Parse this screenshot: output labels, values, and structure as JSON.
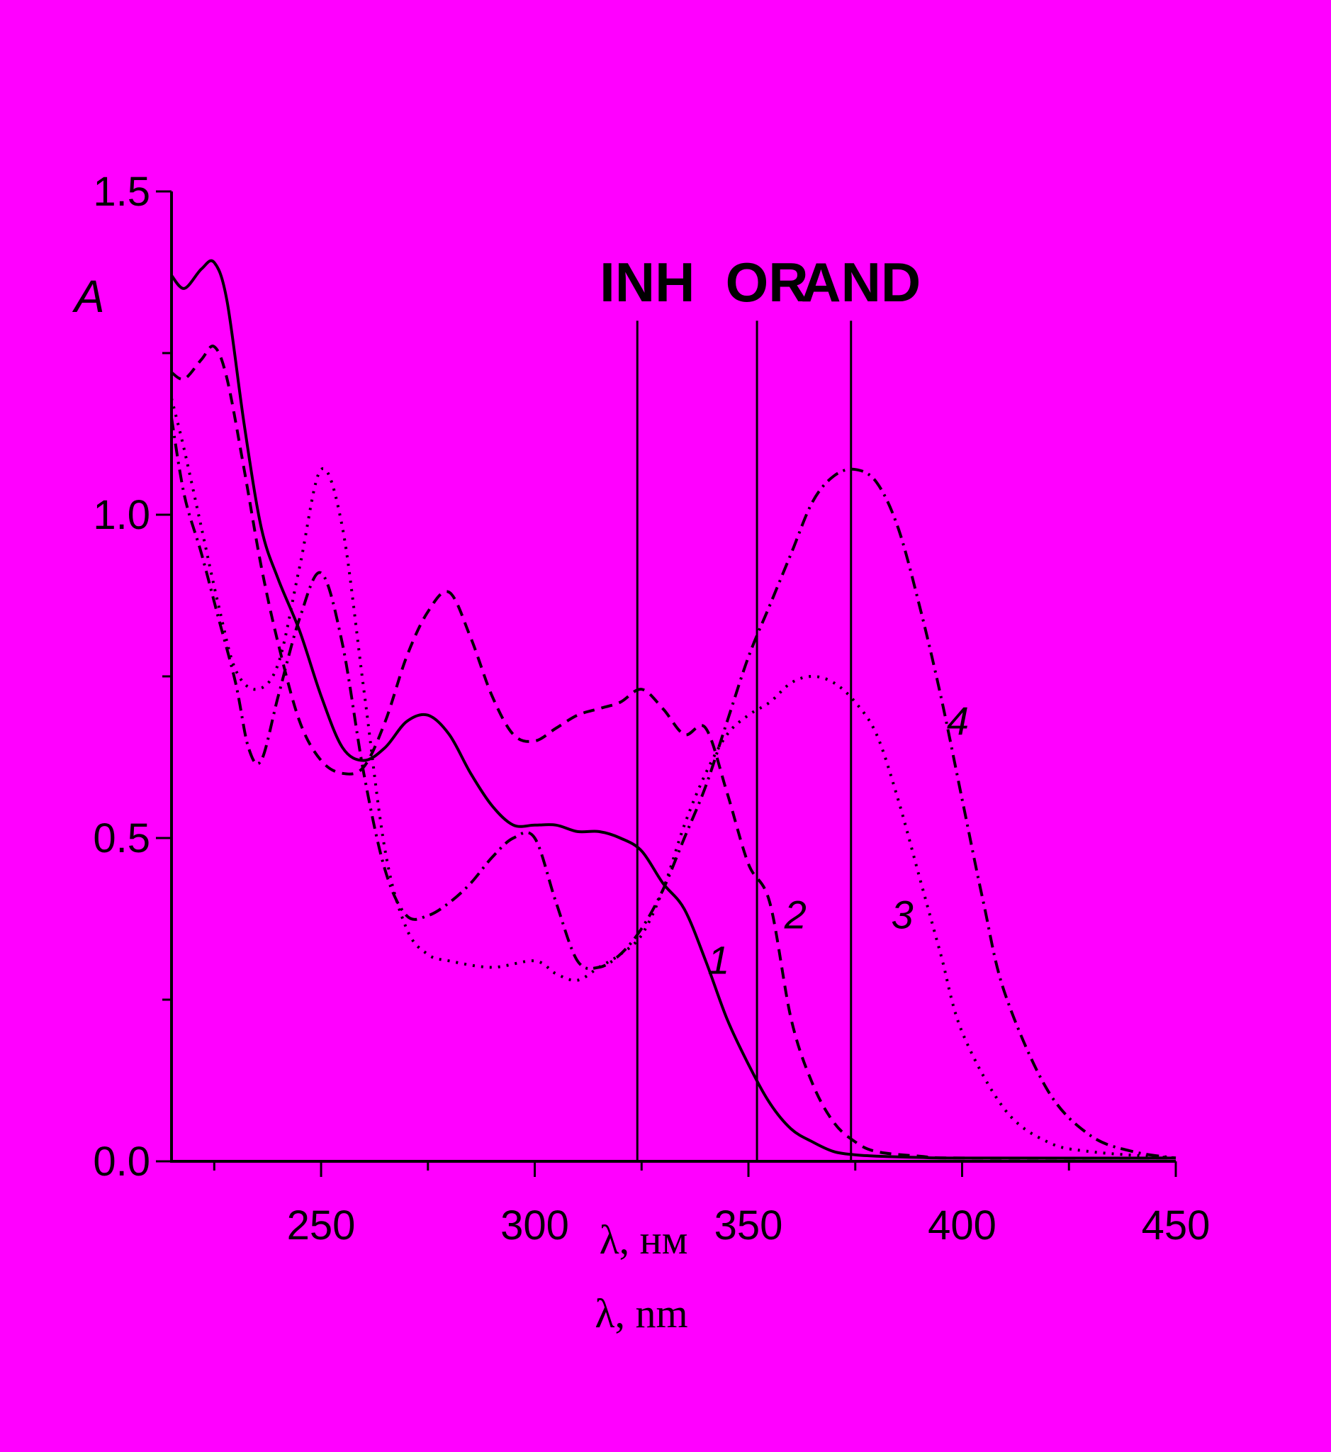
{
  "chart_data": {
    "type": "line",
    "title": "",
    "ylabel": "A",
    "xlabels": [
      "λ, нм",
      "λ, nm"
    ],
    "xlim": [
      215,
      450
    ],
    "ylim": [
      0,
      1.5
    ],
    "x_ticks": [
      250,
      300,
      350,
      400,
      450
    ],
    "y_ticks": [
      0.0,
      0.5,
      1.0,
      1.5
    ],
    "x_tick_labels": [
      "250",
      "300",
      "350",
      "400",
      "450"
    ],
    "y_tick_labels": [
      "0.0",
      "0.5",
      "1.0",
      "1.5"
    ],
    "grid": false,
    "markers": [
      {
        "label": "INH",
        "x": 324
      },
      {
        "label": "OR",
        "x": 352
      },
      {
        "label": "AND",
        "x": 374
      }
    ],
    "series": [
      {
        "name": "1",
        "style": "solid",
        "label_at": [
          343,
          0.29
        ],
        "x": [
          215,
          218,
          222,
          225,
          228,
          232,
          236,
          240,
          245,
          250,
          255,
          260,
          265,
          270,
          275,
          280,
          285,
          290,
          295,
          300,
          305,
          310,
          315,
          320,
          325,
          330,
          335,
          340,
          345,
          350,
          355,
          360,
          365,
          370,
          375,
          380,
          390,
          400,
          450
        ],
        "values": [
          1.37,
          1.35,
          1.38,
          1.39,
          1.33,
          1.14,
          0.98,
          0.9,
          0.82,
          0.72,
          0.64,
          0.62,
          0.64,
          0.68,
          0.69,
          0.66,
          0.6,
          0.55,
          0.52,
          0.52,
          0.52,
          0.51,
          0.51,
          0.5,
          0.48,
          0.43,
          0.39,
          0.31,
          0.22,
          0.15,
          0.09,
          0.05,
          0.03,
          0.015,
          0.01,
          0.008,
          0.006,
          0.005,
          0.005
        ]
      },
      {
        "name": "2",
        "style": "dashed",
        "label_at": [
          361,
          0.36
        ],
        "x": [
          215,
          218,
          222,
          225,
          228,
          232,
          236,
          240,
          245,
          250,
          255,
          260,
          265,
          270,
          275,
          280,
          285,
          290,
          295,
          300,
          305,
          310,
          315,
          320,
          325,
          330,
          335,
          340,
          345,
          350,
          355,
          360,
          365,
          370,
          375,
          380,
          390,
          400,
          450
        ],
        "values": [
          1.22,
          1.21,
          1.24,
          1.26,
          1.21,
          1.07,
          0.92,
          0.8,
          0.68,
          0.62,
          0.6,
          0.61,
          0.68,
          0.78,
          0.85,
          0.88,
          0.81,
          0.72,
          0.66,
          0.65,
          0.67,
          0.69,
          0.7,
          0.71,
          0.73,
          0.7,
          0.66,
          0.67,
          0.57,
          0.46,
          0.4,
          0.22,
          0.12,
          0.06,
          0.03,
          0.015,
          0.008,
          0.005,
          0.005
        ]
      },
      {
        "name": "3",
        "style": "dotted",
        "label_at": [
          386,
          0.36
        ],
        "x": [
          215,
          218,
          222,
          226,
          230,
          235,
          240,
          245,
          250,
          255,
          260,
          265,
          270,
          275,
          280,
          290,
          300,
          305,
          310,
          315,
          320,
          325,
          330,
          335,
          340,
          345,
          350,
          355,
          360,
          365,
          370,
          375,
          380,
          385,
          390,
          395,
          400,
          410,
          420,
          430,
          450
        ],
        "values": [
          1.18,
          1.1,
          0.98,
          0.86,
          0.76,
          0.73,
          0.77,
          0.92,
          1.07,
          0.98,
          0.73,
          0.48,
          0.36,
          0.32,
          0.31,
          0.3,
          0.31,
          0.29,
          0.28,
          0.3,
          0.32,
          0.35,
          0.42,
          0.52,
          0.6,
          0.66,
          0.69,
          0.71,
          0.74,
          0.75,
          0.74,
          0.71,
          0.66,
          0.56,
          0.44,
          0.32,
          0.2,
          0.08,
          0.03,
          0.015,
          0.005
        ]
      },
      {
        "name": "4",
        "style": "dashdot",
        "label_at": [
          399,
          0.66
        ],
        "x": [
          215,
          218,
          222,
          226,
          230,
          233,
          236,
          240,
          245,
          250,
          255,
          260,
          265,
          270,
          275,
          280,
          285,
          290,
          295,
          300,
          305,
          310,
          315,
          320,
          325,
          330,
          335,
          340,
          345,
          350,
          355,
          360,
          365,
          370,
          375,
          380,
          385,
          390,
          395,
          400,
          405,
          410,
          420,
          430,
          440,
          450
        ],
        "values": [
          1.15,
          1.03,
          0.94,
          0.84,
          0.74,
          0.64,
          0.62,
          0.72,
          0.84,
          0.91,
          0.8,
          0.6,
          0.45,
          0.38,
          0.38,
          0.4,
          0.43,
          0.47,
          0.5,
          0.5,
          0.4,
          0.31,
          0.3,
          0.32,
          0.36,
          0.42,
          0.5,
          0.58,
          0.68,
          0.78,
          0.86,
          0.94,
          1.02,
          1.06,
          1.07,
          1.05,
          0.98,
          0.86,
          0.72,
          0.56,
          0.4,
          0.26,
          0.11,
          0.04,
          0.015,
          0.005
        ]
      }
    ]
  }
}
